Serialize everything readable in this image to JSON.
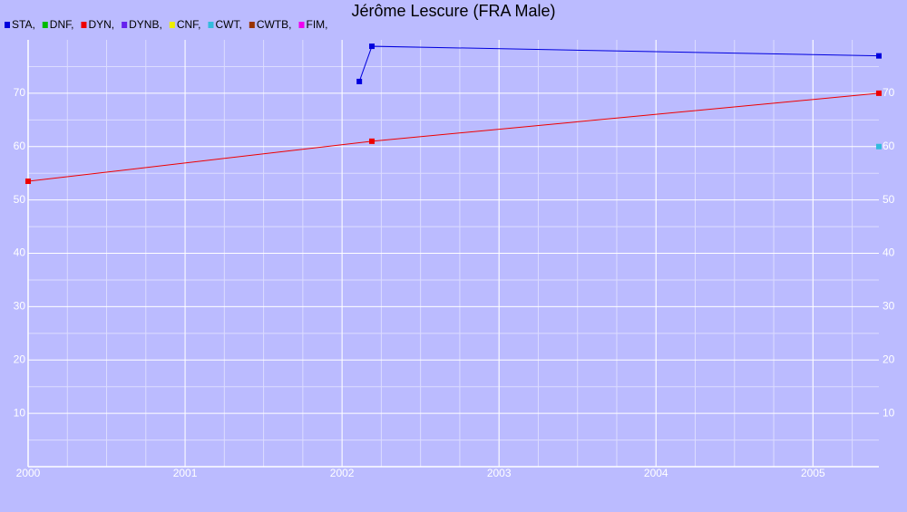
{
  "chart_data": {
    "type": "line",
    "title": "Jérôme Lescure (FRA Male)",
    "series": [
      {
        "name": "STA,",
        "color": "#0000dd",
        "x": [
          2002.11,
          2002.19,
          2005.42
        ],
        "values": [
          72.2,
          78.8,
          77
        ]
      },
      {
        "name": "DNF,",
        "color": "#00bb00",
        "x": [],
        "values": []
      },
      {
        "name": "DYN,",
        "color": "#ee0000",
        "x": [
          2000,
          2002.19,
          2005.42
        ],
        "values": [
          53.5,
          61,
          70
        ]
      },
      {
        "name": "DYNB,",
        "color": "#6622ee",
        "x": [],
        "values": []
      },
      {
        "name": "CNF,",
        "color": "#eeee00",
        "x": [],
        "values": []
      },
      {
        "name": "CWT,",
        "color": "#33bbdd",
        "x": [
          2005.42
        ],
        "values": [
          60
        ]
      },
      {
        "name": "CWTB,",
        "color": "#993300",
        "x": [],
        "values": []
      },
      {
        "name": "FIM,",
        "color": "#ee00ee",
        "x": [],
        "values": []
      }
    ],
    "xlim": [
      2000,
      2005.42
    ],
    "xticks": [
      2000,
      2001,
      2002,
      2003,
      2004,
      2005
    ],
    "ylim": [
      0,
      80
    ],
    "yticks": [
      10,
      20,
      30,
      40,
      50,
      60,
      70
    ],
    "grid": true
  }
}
